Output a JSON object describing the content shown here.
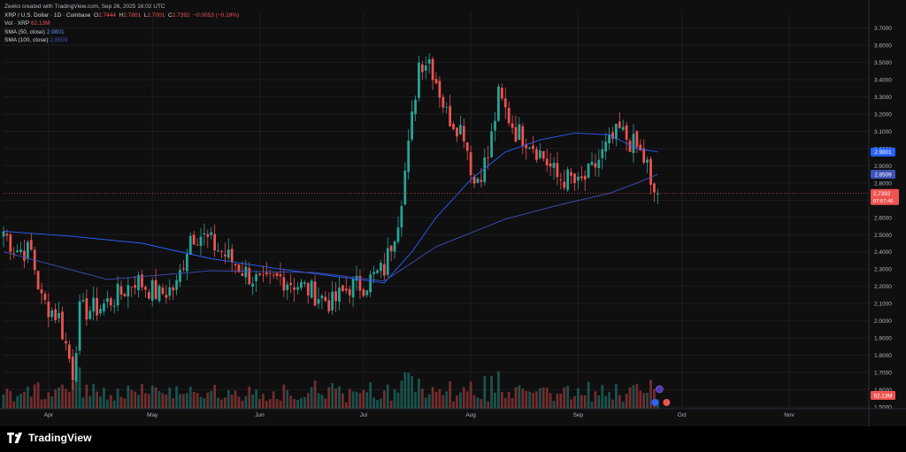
{
  "header": {
    "credit": "Zeeko created with TradingView.com, Sep 26, 2025 16:02 UTC",
    "symbol": "XRP / U.S. Dollar · 1D · Coinbase",
    "o_label": "O",
    "o_value": "2.7444",
    "h_label": "H",
    "h_value": "2.7801",
    "l_label": "L",
    "l_value": "2.7001",
    "c_label": "C",
    "c_value": "2.7392",
    "change": "−0.0053 (−0.19%)",
    "vol_label": "Vol · XRP",
    "vol_value": "62.13M",
    "sma50_label": "SMA (50, close)",
    "sma50_value": "2.9801",
    "sma100_label": "SMA (100, close)",
    "sma100_value": "2.8509"
  },
  "colors": {
    "up": "#26a69a",
    "down": "#ef5350",
    "sma50": "#2962ff",
    "sma100": "#3f51b5",
    "background": "#0f0f10",
    "text": "#d1d4dc"
  },
  "badges": {
    "sma50": "2.9801",
    "sma100": "2.8509",
    "price": "2.7392",
    "countdown": "07:57:46",
    "volume": "62.13M"
  },
  "footer": {
    "brand": "TradingView",
    "logo_icon": "tradingview-logo-icon"
  },
  "chart_data": {
    "type": "candlestick",
    "title": "XRP / U.S. Dollar · 1D · Coinbase",
    "y_ticks": [
      "3.7000",
      "3.6000",
      "3.5000",
      "3.4000",
      "3.3000",
      "3.2000",
      "3.1000",
      "3.0000",
      "2.9000",
      "2.8000",
      "2.7000",
      "2.6000",
      "2.5000",
      "2.4000",
      "2.3000",
      "2.2000",
      "2.1000",
      "2.0000",
      "1.9000",
      "1.8000",
      "1.7000",
      "1.6000",
      "1.5000"
    ],
    "y_range": [
      1.5,
      3.7
    ],
    "x_ticks": [
      {
        "label": "Apr",
        "day": 13
      },
      {
        "label": "May",
        "day": 43
      },
      {
        "label": "Jun",
        "day": 74
      },
      {
        "label": "Jul",
        "day": 104
      },
      {
        "label": "Aug",
        "day": 135
      },
      {
        "label": "Sep",
        "day": 166
      },
      {
        "label": "Oct",
        "day": 196
      },
      {
        "label": "Nov",
        "day": 227
      }
    ],
    "x_range_days": [
      0,
      250
    ],
    "series": [
      {
        "name": "XRP / U.S. Dollar",
        "anchors": [
          [
            0,
            2.52
          ],
          [
            3,
            2.42
          ],
          [
            8,
            2.4
          ],
          [
            11,
            2.12
          ],
          [
            16,
            2.02
          ],
          [
            20,
            1.7
          ],
          [
            22,
            2.05
          ],
          [
            28,
            2.08
          ],
          [
            34,
            2.16
          ],
          [
            38,
            2.24
          ],
          [
            45,
            2.15
          ],
          [
            50,
            2.2
          ],
          [
            54,
            2.5
          ],
          [
            57,
            2.5
          ],
          [
            63,
            2.4
          ],
          [
            70,
            2.28
          ],
          [
            75,
            2.2
          ],
          [
            80,
            2.25
          ],
          [
            84,
            2.22
          ],
          [
            88,
            2.18
          ],
          [
            95,
            2.1
          ],
          [
            100,
            2.2
          ],
          [
            104,
            2.21
          ],
          [
            110,
            2.3
          ],
          [
            114,
            2.6
          ],
          [
            117,
            3.0
          ],
          [
            120,
            3.5
          ],
          [
            123,
            3.52
          ],
          [
            125,
            3.4
          ],
          [
            128,
            3.2
          ],
          [
            133,
            3.1
          ],
          [
            136,
            2.8
          ],
          [
            140,
            2.95
          ],
          [
            143,
            3.3
          ],
          [
            148,
            3.1
          ],
          [
            152,
            3.05
          ],
          [
            156,
            2.95
          ],
          [
            160,
            2.83
          ],
          [
            164,
            2.82
          ],
          [
            166,
            2.78
          ],
          [
            170,
            2.87
          ],
          [
            174,
            3.0
          ],
          [
            178,
            3.1
          ],
          [
            183,
            3.0
          ],
          [
            186,
            2.9
          ],
          [
            187,
            2.75
          ],
          [
            189,
            2.7392
          ]
        ]
      },
      {
        "name": "SMA (50, close)",
        "points": [
          [
            0,
            2.52
          ],
          [
            20,
            2.49
          ],
          [
            40,
            2.45
          ],
          [
            60,
            2.36
          ],
          [
            80,
            2.3
          ],
          [
            95,
            2.26
          ],
          [
            110,
            2.22
          ],
          [
            118,
            2.4
          ],
          [
            125,
            2.6
          ],
          [
            135,
            2.82
          ],
          [
            145,
            2.98
          ],
          [
            155,
            3.05
          ],
          [
            165,
            3.09
          ],
          [
            175,
            3.08
          ],
          [
            183,
            3.0
          ],
          [
            189,
            2.98
          ]
        ]
      },
      {
        "name": "SMA (100, close)",
        "points": [
          [
            0,
            2.4
          ],
          [
            30,
            2.24
          ],
          [
            60,
            2.29
          ],
          [
            90,
            2.28
          ],
          [
            110,
            2.23
          ],
          [
            125,
            2.43
          ],
          [
            145,
            2.59
          ],
          [
            160,
            2.67
          ],
          [
            175,
            2.74
          ],
          [
            183,
            2.8
          ],
          [
            189,
            2.85
          ]
        ]
      }
    ],
    "volume": {
      "name": "Vol · XRP",
      "last": "62.13M"
    },
    "grid": true,
    "legend": "top-left"
  }
}
